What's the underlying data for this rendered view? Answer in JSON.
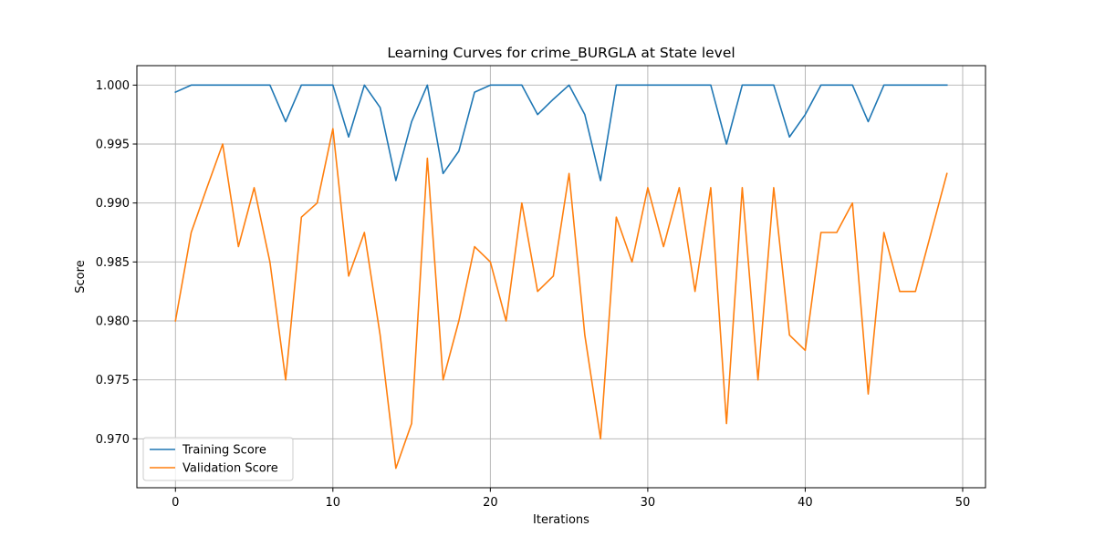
{
  "chart_data": {
    "type": "line",
    "title": "Learning Curves for crime_BURGLA at State level",
    "xlabel": "Iterations",
    "ylabel": "Score",
    "xlim": [
      -2.45,
      51.45
    ],
    "ylim": [
      0.96585,
      1.00165
    ],
    "xticks": [
      0,
      10,
      20,
      30,
      40,
      50
    ],
    "yticks": [
      0.97,
      0.975,
      0.98,
      0.985,
      0.99,
      0.995,
      1.0
    ],
    "ytick_labels": [
      "0.970",
      "0.975",
      "0.980",
      "0.985",
      "0.990",
      "0.995",
      "1.000"
    ],
    "grid": true,
    "legend_position": "lower-left",
    "x": [
      0,
      1,
      2,
      3,
      4,
      5,
      6,
      7,
      8,
      9,
      10,
      11,
      12,
      13,
      14,
      15,
      16,
      17,
      18,
      19,
      20,
      21,
      22,
      23,
      24,
      25,
      26,
      27,
      28,
      29,
      30,
      31,
      32,
      33,
      34,
      35,
      36,
      37,
      38,
      39,
      40,
      41,
      42,
      43,
      44,
      45,
      46,
      47,
      48,
      49
    ],
    "series": [
      {
        "name": "Training Score",
        "color": "#1f77b4",
        "values": [
          0.9994,
          1.0,
          1.0,
          1.0,
          1.0,
          1.0,
          1.0,
          0.9969,
          1.0,
          1.0,
          1.0,
          0.9956,
          1.0,
          0.9981,
          0.9919,
          0.9969,
          1.0,
          0.9925,
          0.9944,
          0.9994,
          1.0,
          1.0,
          1.0,
          0.9975,
          0.9988,
          1.0,
          0.9975,
          0.9919,
          1.0,
          1.0,
          1.0,
          1.0,
          1.0,
          1.0,
          1.0,
          0.995,
          1.0,
          1.0,
          1.0,
          0.9956,
          0.9975,
          1.0,
          1.0,
          1.0,
          0.9969,
          1.0,
          1.0,
          1.0,
          1.0,
          1.0
        ]
      },
      {
        "name": "Validation Score",
        "color": "#ff7f0e",
        "values": [
          0.98,
          0.9875,
          0.9913,
          0.995,
          0.9863,
          0.9913,
          0.985,
          0.975,
          0.9888,
          0.99,
          0.9963,
          0.9838,
          0.9875,
          0.9788,
          0.9675,
          0.9713,
          0.9938,
          0.975,
          0.98,
          0.9863,
          0.985,
          0.98,
          0.99,
          0.9825,
          0.9838,
          0.9925,
          0.9788,
          0.97,
          0.9888,
          0.985,
          0.9913,
          0.9863,
          0.9913,
          0.9825,
          0.9913,
          0.9713,
          0.9913,
          0.975,
          0.9913,
          0.9788,
          0.9775,
          0.9875,
          0.9875,
          0.99,
          0.9738,
          0.9875,
          0.9825,
          0.9825,
          0.9875,
          0.9925
        ]
      }
    ]
  }
}
